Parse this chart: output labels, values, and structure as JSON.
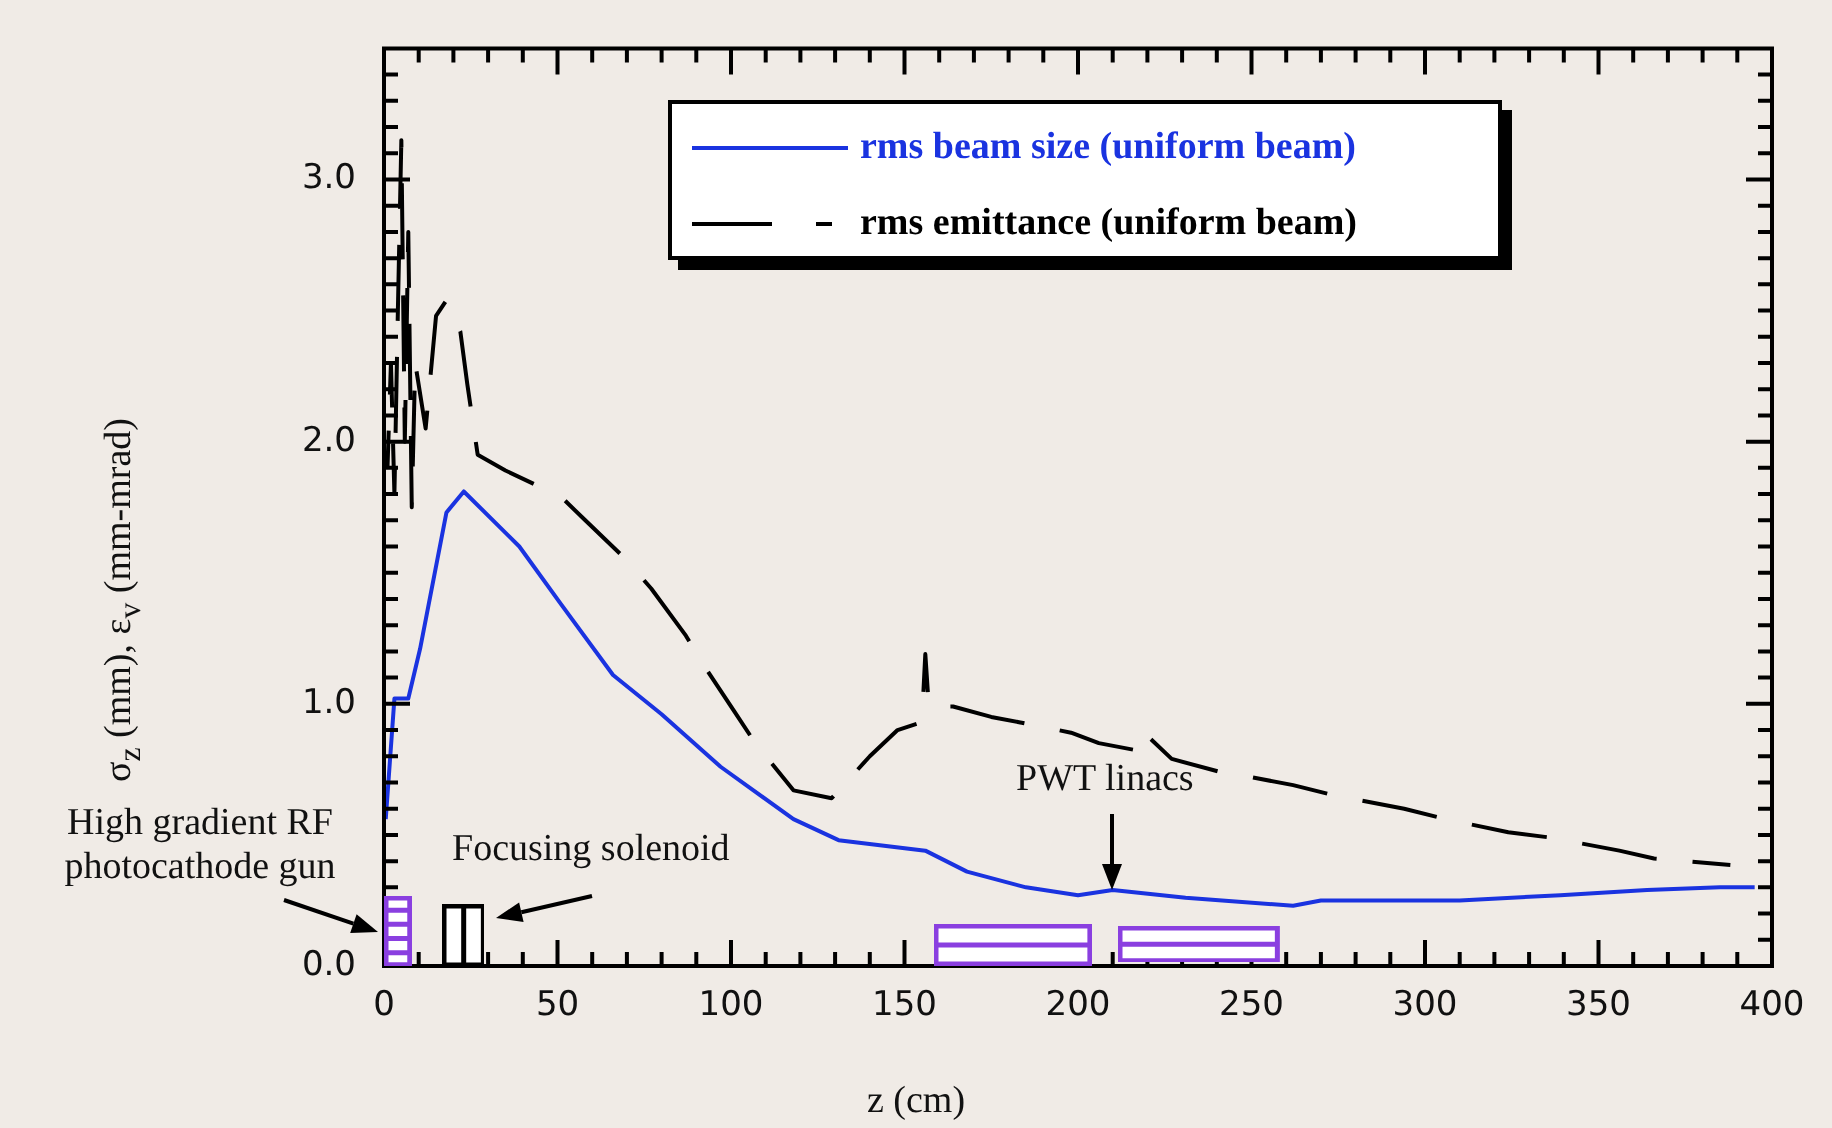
{
  "chart_data": {
    "type": "line",
    "xlabel": "z (cm)",
    "ylabel": "σ$_{z}$ (mm), ε$_{v}$ (mm-mrad)",
    "xlim": [
      0,
      400
    ],
    "ylim": [
      0,
      3.5
    ],
    "xticks": [
      0,
      {
        "value": 10,
        "label": null
      },
      {
        "value": 20,
        "label": null
      },
      {
        "value": 30,
        "label": null
      },
      {
        "value": 40,
        "label": null
      },
      50,
      {
        "value": 60,
        "label": null
      },
      {
        "value": 70,
        "label": null
      },
      {
        "value": 80,
        "label": null
      },
      {
        "value": 90,
        "label": null
      },
      100,
      {
        "value": 110,
        "label": null
      },
      {
        "value": 120,
        "label": null
      },
      {
        "value": 130,
        "label": null
      },
      {
        "value": 140,
        "label": null
      },
      150,
      {
        "value": 160,
        "label": null
      },
      {
        "value": 170,
        "label": null
      },
      {
        "value": 180,
        "label": null
      },
      {
        "value": 190,
        "label": null
      },
      200,
      {
        "value": 210,
        "label": null
      },
      {
        "value": 220,
        "label": null
      },
      {
        "value": 230,
        "label": null
      },
      {
        "value": 240,
        "label": null
      },
      250,
      {
        "value": 260,
        "label": null
      },
      {
        "value": 270,
        "label": null
      },
      {
        "value": 280,
        "label": null
      },
      {
        "value": 290,
        "label": null
      },
      300,
      {
        "value": 310,
        "label": null
      },
      {
        "value": 320,
        "label": null
      },
      {
        "value": 330,
        "label": null
      },
      {
        "value": 340,
        "label": null
      },
      350,
      {
        "value": 360,
        "label": null
      },
      {
        "value": 370,
        "label": null
      },
      {
        "value": 380,
        "label": null
      },
      {
        "value": 390,
        "label": null
      },
      400
    ],
    "yticks": [
      {
        "value": 0,
        "label": "0.0"
      },
      {
        "value": 0.1,
        "label": null
      },
      {
        "value": 0.2,
        "label": null
      },
      {
        "value": 0.3,
        "label": null
      },
      {
        "value": 0.4,
        "label": null
      },
      {
        "value": 0.5,
        "label": null
      },
      {
        "value": 0.6,
        "label": null
      },
      {
        "value": 0.7,
        "label": null
      },
      {
        "value": 0.8,
        "label": null
      },
      {
        "value": 0.9,
        "label": null
      },
      {
        "value": 1,
        "label": "1.0"
      },
      {
        "value": 1.1,
        "label": null
      },
      {
        "value": 1.2,
        "label": null
      },
      {
        "value": 1.3,
        "label": null
      },
      {
        "value": 1.4,
        "label": null
      },
      {
        "value": 1.5,
        "label": null
      },
      {
        "value": 1.6,
        "label": null
      },
      {
        "value": 1.7,
        "label": null
      },
      {
        "value": 1.8,
        "label": null
      },
      {
        "value": 1.9,
        "label": null
      },
      {
        "value": 2,
        "label": "2.0"
      },
      {
        "value": 2.1,
        "label": null
      },
      {
        "value": 2.2,
        "label": null
      },
      {
        "value": 2.3,
        "label": null
      },
      {
        "value": 2.4,
        "label": null
      },
      {
        "value": 2.5,
        "label": null
      },
      {
        "value": 2.6,
        "label": null
      },
      {
        "value": 2.7,
        "label": null
      },
      {
        "value": 2.8,
        "label": null
      },
      {
        "value": 2.9,
        "label": null
      },
      {
        "value": 3,
        "label": "3.0"
      },
      {
        "value": 3.1,
        "label": null
      },
      {
        "value": 3.2,
        "label": null
      },
      {
        "value": 3.3,
        "label": null
      },
      {
        "value": 3.4,
        "label": null
      }
    ],
    "legend": "top right",
    "series": [
      {
        "name": "rms beam size (uniform beam)",
        "color": "#1a33e0",
        "line_style": "solid",
        "x": [
          0.5,
          3,
          7,
          10.4,
          18,
          23,
          39,
          51,
          66,
          80,
          97,
          118,
          131,
          156,
          168,
          185,
          200,
          210,
          231,
          262,
          270,
          310,
          339,
          364,
          385,
          395
        ],
        "values": [
          0.56,
          1.02,
          1.02,
          1.21,
          1.73,
          1.81,
          1.6,
          1.38,
          1.11,
          0.96,
          0.76,
          0.56,
          0.48,
          0.44,
          0.36,
          0.3,
          0.27,
          0.29,
          0.26,
          0.23,
          0.25,
          0.25,
          0.27,
          0.29,
          0.3,
          0.3
        ]
      },
      {
        "name": "rms emittance (uniform beam)",
        "color": "#000000",
        "line_style": "dashed",
        "x": [
          1,
          2,
          3,
          4,
          5,
          6,
          7,
          8,
          9,
          12,
          15,
          18,
          22,
          24,
          27,
          35,
          51,
          58,
          69,
          77,
          87,
          92,
          101,
          107,
          118,
          129,
          140,
          148,
          155,
          156,
          157,
          164,
          175,
          183,
          198,
          206,
          218,
          219,
          227,
          241,
          250,
          262,
          274,
          294,
          306,
          324,
          336,
          356,
          366,
          388
        ],
        "values": [
          1.9,
          2.3,
          1.8,
          2.5,
          3.15,
          2.0,
          2.8,
          1.75,
          2.3,
          2.05,
          2.48,
          2.54,
          2.42,
          2.22,
          1.95,
          1.89,
          1.79,
          1.7,
          1.56,
          1.44,
          1.26,
          1.15,
          0.97,
          0.85,
          0.67,
          0.64,
          0.8,
          0.9,
          0.93,
          1.19,
          0.99,
          0.99,
          0.95,
          0.93,
          0.89,
          0.85,
          0.82,
          0.89,
          0.79,
          0.74,
          0.72,
          0.69,
          0.65,
          0.6,
          0.56,
          0.51,
          0.49,
          0.44,
          0.41,
          0.385
        ]
      }
    ],
    "annotations": [
      "High gradient RF photocathode gun",
      "Focusing solenoid",
      "PWT linacs"
    ]
  }
}
